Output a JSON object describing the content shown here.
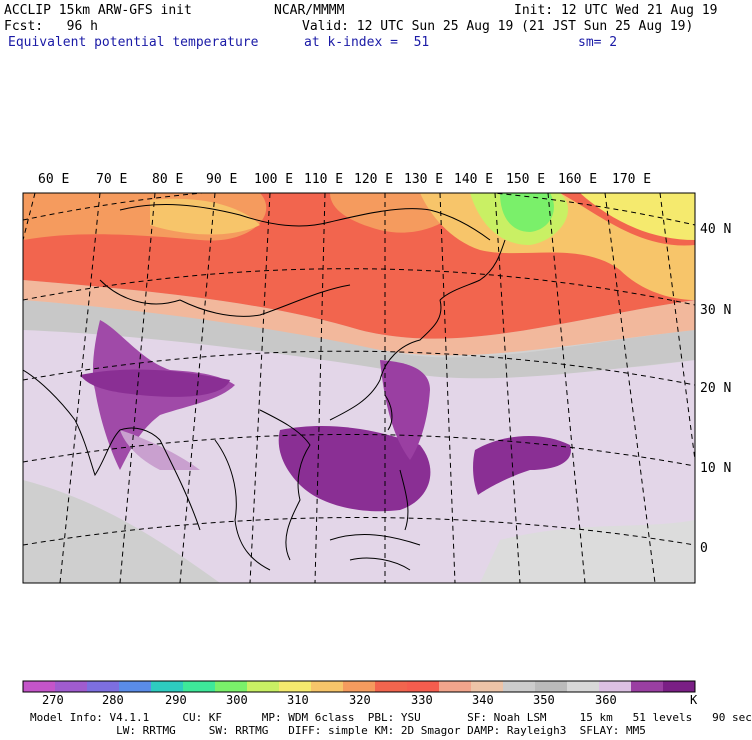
{
  "header": {
    "line1_left": "ACCLIP 15km ARW-GFS init",
    "line1_center": "NCAR/MMMM",
    "line1_right": "Init: 12 UTC Wed 21 Aug 19",
    "line2_left": "Fcst:   96 h",
    "line2_right": "Valid: 12 UTC Sun 25 Aug 19 (21 JST Sun 25 Aug 19)",
    "line3_left": "Equivalent potential temperature",
    "line3_center": "at k-index =  51",
    "line3_right": "sm= 2"
  },
  "map": {
    "lon_labels": [
      "60 E",
      "70 E",
      "80 E",
      "90 E",
      "100 E",
      "110 E",
      "120 E",
      "130 E",
      "140 E",
      "150 E",
      "160 E",
      "170 E"
    ],
    "lat_labels": [
      "40 N",
      "30 N",
      "20 N",
      "10 N",
      "0"
    ]
  },
  "colorbar": {
    "unit": "K",
    "tick_labels": [
      "270",
      "280",
      "290",
      "300",
      "310",
      "320",
      "330",
      "340",
      "350",
      "360"
    ],
    "colors": [
      "#c455c9",
      "#a05ccf",
      "#7d6fe0",
      "#5a8ce8",
      "#2ecbc0",
      "#3ee89a",
      "#7af06a",
      "#c9f064",
      "#f5ea6e",
      "#f7c56a",
      "#f59b5e",
      "#f2654e",
      "#f55d4e",
      "#f2a58c",
      "#edc4a8",
      "#cccccc",
      "#bbbbbb",
      "#d8d8d8",
      "#dcc1e3",
      "#9a3fa2",
      "#7a1f85"
    ]
  },
  "footer": {
    "line1": "Model Info: V4.1.1     CU: KF      MP: WDM 6class  PBL: YSU       SF: Noah LSM     15 km   51 levels   90 sec",
    "line2": "             LW: RRTMG     SW: RRTMG   DIFF: simple KM: 2D Smagor DAMP: Rayleigh3  SFLAY: MM5"
  }
}
